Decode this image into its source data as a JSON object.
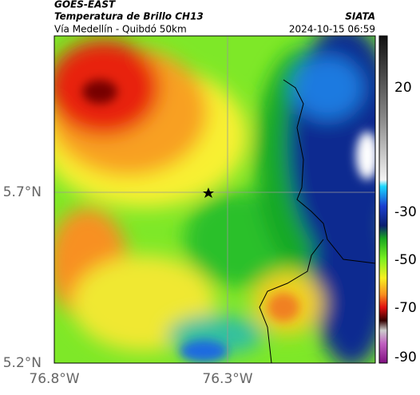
{
  "header": {
    "title": "GOES-EAST",
    "subtitle": "Temperatura de Brillo CH13",
    "region": "Vía Medellín - Quibdó 50km",
    "source": "SIATA",
    "timestamp": "2024-10-15 06:59"
  },
  "axes": {
    "x_labels": [
      "76.8°W",
      "76.3°W"
    ],
    "y_labels": [
      "5.7°N",
      "5.2°N"
    ]
  },
  "colorbar": {
    "labels": [
      20,
      -30,
      -50,
      -70,
      -90
    ]
  }
}
